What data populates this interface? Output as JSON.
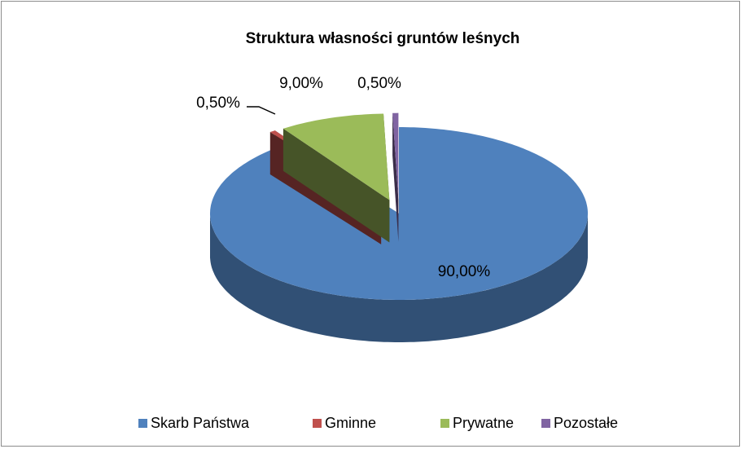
{
  "chart_data": {
    "type": "pie",
    "title": "Struktura własności  gruntów leśnych",
    "categories": [
      "Skarb Państwa",
      "Gminne",
      "Prywatne",
      "Pozostałe"
    ],
    "values": [
      90,
      0.5,
      9,
      0.5
    ],
    "value_labels": [
      "90,00%",
      "0,50%",
      "9,00%",
      "0,50%"
    ],
    "colors": [
      "#4f81bd",
      "#c0504d",
      "#9bbb59",
      "#8064a2"
    ],
    "legend": "bottom"
  }
}
